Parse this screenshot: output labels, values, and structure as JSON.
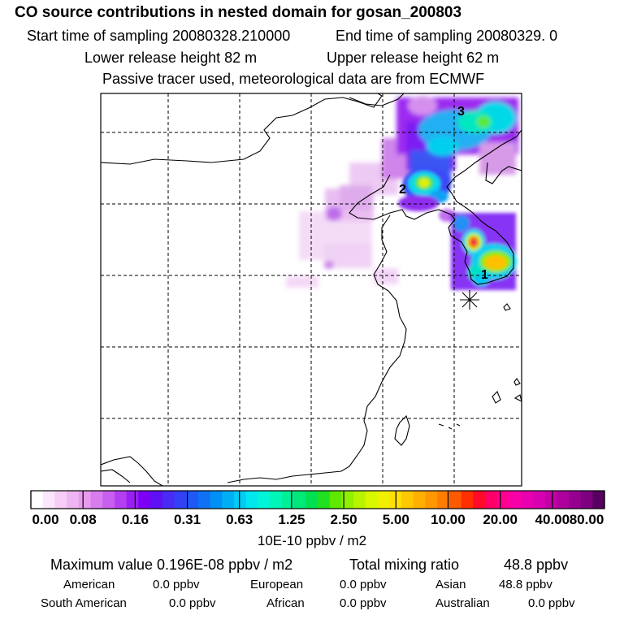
{
  "header": {
    "title": "CO  source contributions in nested domain for gosan_200803",
    "start_label": "Start time of sampling 20080328.210000",
    "end_label": "End time of sampling 20080329.     0",
    "lower_label": "Lower release height   82 m",
    "upper_label": "Upper release height   62 m",
    "tracer_note": "Passive tracer used, meteorological data are from ECMWF"
  },
  "map": {
    "markers": [
      "1",
      "2",
      "3"
    ],
    "receptor_symbol": "asterisk"
  },
  "legend": {
    "ticks": [
      "0.00",
      "0.08",
      "0.16",
      "0.31",
      "0.63",
      "1.25",
      "2.50",
      "5.00",
      "10.00",
      "20.00",
      "40.00",
      "80.00"
    ],
    "units": "10E-10 ppbv / m2",
    "colors": [
      "#ffffff",
      "#fbe6fb",
      "#f6cdf6",
      "#efb4f2",
      "#e89bee",
      "#d97cee",
      "#c95ff0",
      "#b43ff2",
      "#9a1ff4",
      "#7c00f5",
      "#5f10f5",
      "#4a2af5",
      "#3340f5",
      "#2058f5",
      "#0f72f5",
      "#0090f5",
      "#00aef5",
      "#00ccf5",
      "#00e8ee",
      "#00f5d8",
      "#00f5b8",
      "#00f098",
      "#00e878",
      "#00e050",
      "#20e020",
      "#60e800",
      "#90f000",
      "#b8f400",
      "#d8f800",
      "#f0f000",
      "#ffe000",
      "#ffc800",
      "#ffb000",
      "#ff9800",
      "#ff7c00",
      "#ff5a00",
      "#ff3000",
      "#ff0a28",
      "#ff0068",
      "#ff0090",
      "#f800a8",
      "#e800b0",
      "#d800b0",
      "#c400a8",
      "#ae009c",
      "#960090",
      "#7c0080",
      "#580060"
    ]
  },
  "footer": {
    "max_label": "Maximum value  0.196E-08 ppbv / m2",
    "total_label": "Total mixing ratio",
    "total_value": "48.8 ppbv",
    "regions": [
      {
        "name": "American",
        "value": "0.0 ppbv"
      },
      {
        "name": "European",
        "value": "0.0 ppbv"
      },
      {
        "name": "Asian",
        "value": "48.8 ppbv"
      },
      {
        "name": "South American",
        "value": "0.0 ppbv"
      },
      {
        "name": "African",
        "value": "0.0 ppbv"
      },
      {
        "name": "Australian",
        "value": "0.0 ppbv"
      }
    ]
  }
}
